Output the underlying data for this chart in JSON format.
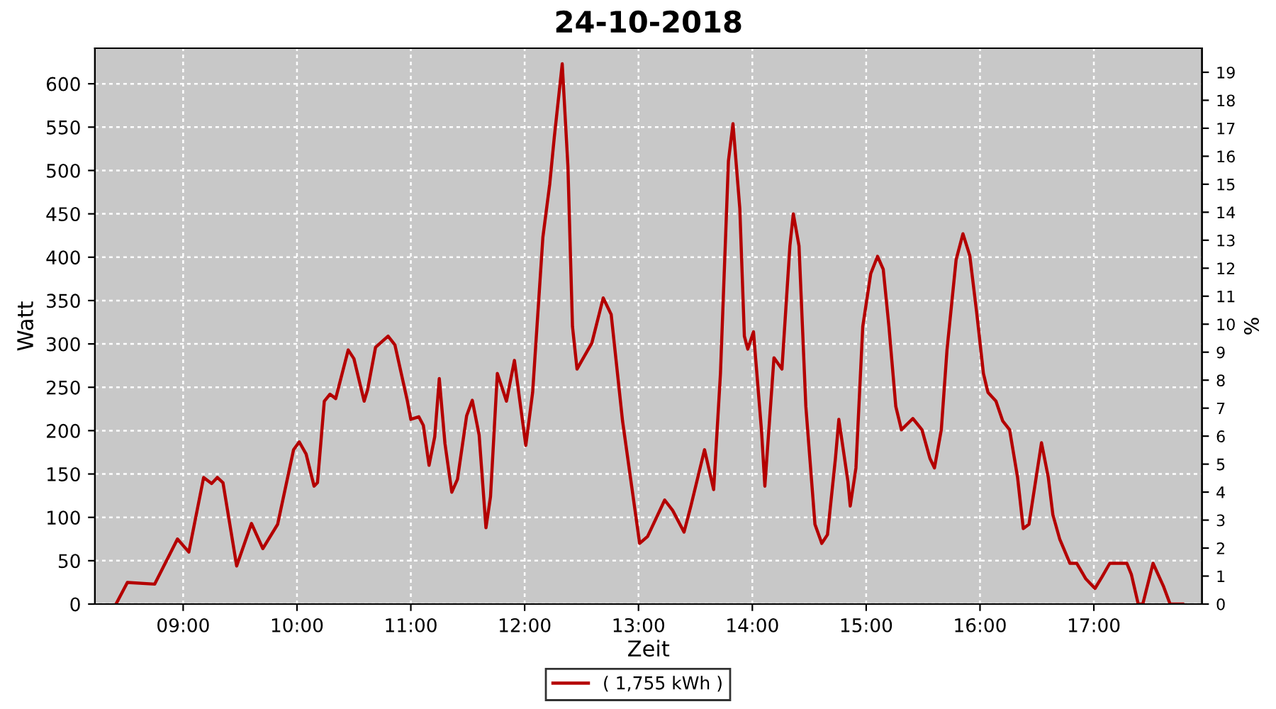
{
  "chart_data": {
    "type": "line",
    "title": "24-10-2018",
    "xlabel": "Zeit",
    "ylabel": "Watt",
    "y2label": "%",
    "xlim": [
      8.225,
      17.95
    ],
    "xticks": [
      {
        "value": 9,
        "label": "09:00"
      },
      {
        "value": 10,
        "label": "10:00"
      },
      {
        "value": 11,
        "label": "11:00"
      },
      {
        "value": 12,
        "label": "12:00"
      },
      {
        "value": 13,
        "label": "13:00"
      },
      {
        "value": 14,
        "label": "14:00"
      },
      {
        "value": 15,
        "label": "15:00"
      },
      {
        "value": 16,
        "label": "16:00"
      },
      {
        "value": 17,
        "label": "17:00"
      }
    ],
    "ylim": [
      0,
      641
    ],
    "yticks": [
      0,
      50,
      100,
      150,
      200,
      250,
      300,
      350,
      400,
      450,
      500,
      550,
      600
    ],
    "y2lim": [
      0,
      19.86
    ],
    "y2ticks": [
      0,
      1,
      2,
      3,
      4,
      5,
      6,
      7,
      8,
      9,
      10,
      11,
      12,
      13,
      14,
      15,
      16,
      17,
      18,
      19
    ],
    "grid": true,
    "legend": "bottom",
    "line_style": "solid",
    "marker": "none",
    "x": [
      8.41,
      8.51,
      8.75,
      8.95,
      9.05,
      9.18,
      9.25,
      9.3,
      9.35,
      9.47,
      9.6,
      9.7,
      9.83,
      9.97,
      10.02,
      10.08,
      10.15,
      10.18,
      10.24,
      10.29,
      10.34,
      10.45,
      10.5,
      10.59,
      10.62,
      10.69,
      10.8,
      10.86,
      10.97,
      11.0,
      11.07,
      11.11,
      11.16,
      11.21,
      11.25,
      11.3,
      11.36,
      11.41,
      11.49,
      11.54,
      11.6,
      11.66,
      11.7,
      11.76,
      11.84,
      11.91,
      12.01,
      12.07,
      12.16,
      12.22,
      12.26,
      12.33,
      12.38,
      12.42,
      12.46,
      12.59,
      12.69,
      12.76,
      12.86,
      13.01,
      13.08,
      13.23,
      13.3,
      13.4,
      13.46,
      13.58,
      13.66,
      13.72,
      13.79,
      13.83,
      13.89,
      13.93,
      13.96,
      14.01,
      14.08,
      14.11,
      14.19,
      14.26,
      14.33,
      14.36,
      14.41,
      14.47,
      14.55,
      14.61,
      14.66,
      14.73,
      14.76,
      14.84,
      14.86,
      14.91,
      14.97,
      15.04,
      15.1,
      15.15,
      15.2,
      15.26,
      15.31,
      15.41,
      15.49,
      15.56,
      15.6,
      15.66,
      15.71,
      15.79,
      15.85,
      15.91,
      15.97,
      16.03,
      16.07,
      16.14,
      16.2,
      16.26,
      16.33,
      16.38,
      16.43,
      16.54,
      16.6,
      16.64,
      16.7,
      16.79,
      16.85,
      16.93,
      17.01,
      17.07,
      17.14,
      17.29,
      17.33,
      17.39,
      17.43,
      17.52,
      17.61,
      17.67,
      17.78
    ],
    "series": [
      {
        "name": "( 1,755 kWh )",
        "color": "#b40000",
        "values": [
          0,
          25,
          23,
          75,
          60,
          146,
          139,
          146,
          140,
          44,
          93,
          64,
          92,
          178,
          187,
          173,
          136,
          140,
          234,
          242,
          237,
          293,
          283,
          234,
          247,
          296,
          309,
          299,
          234,
          213,
          216,
          206,
          160,
          193,
          260,
          185,
          129,
          144,
          217,
          235,
          195,
          88,
          124,
          266,
          234,
          281,
          183,
          244,
          423,
          484,
          538,
          623,
          505,
          320,
          271,
          301,
          353,
          334,
          211,
          70,
          78,
          120,
          108,
          83,
          113,
          178,
          132,
          266,
          511,
          554,
          456,
          309,
          294,
          314,
          201,
          136,
          284,
          271,
          413,
          450,
          413,
          228,
          92,
          70,
          80,
          168,
          213,
          141,
          113,
          157,
          320,
          381,
          401,
          386,
          320,
          228,
          201,
          214,
          201,
          168,
          157,
          201,
          293,
          397,
          427,
          402,
          337,
          266,
          244,
          234,
          211,
          201,
          146,
          87,
          92,
          186,
          146,
          103,
          75,
          47,
          47,
          29,
          18,
          31,
          47,
          47,
          34,
          0,
          0,
          47,
          21,
          0,
          0
        ]
      }
    ]
  }
}
